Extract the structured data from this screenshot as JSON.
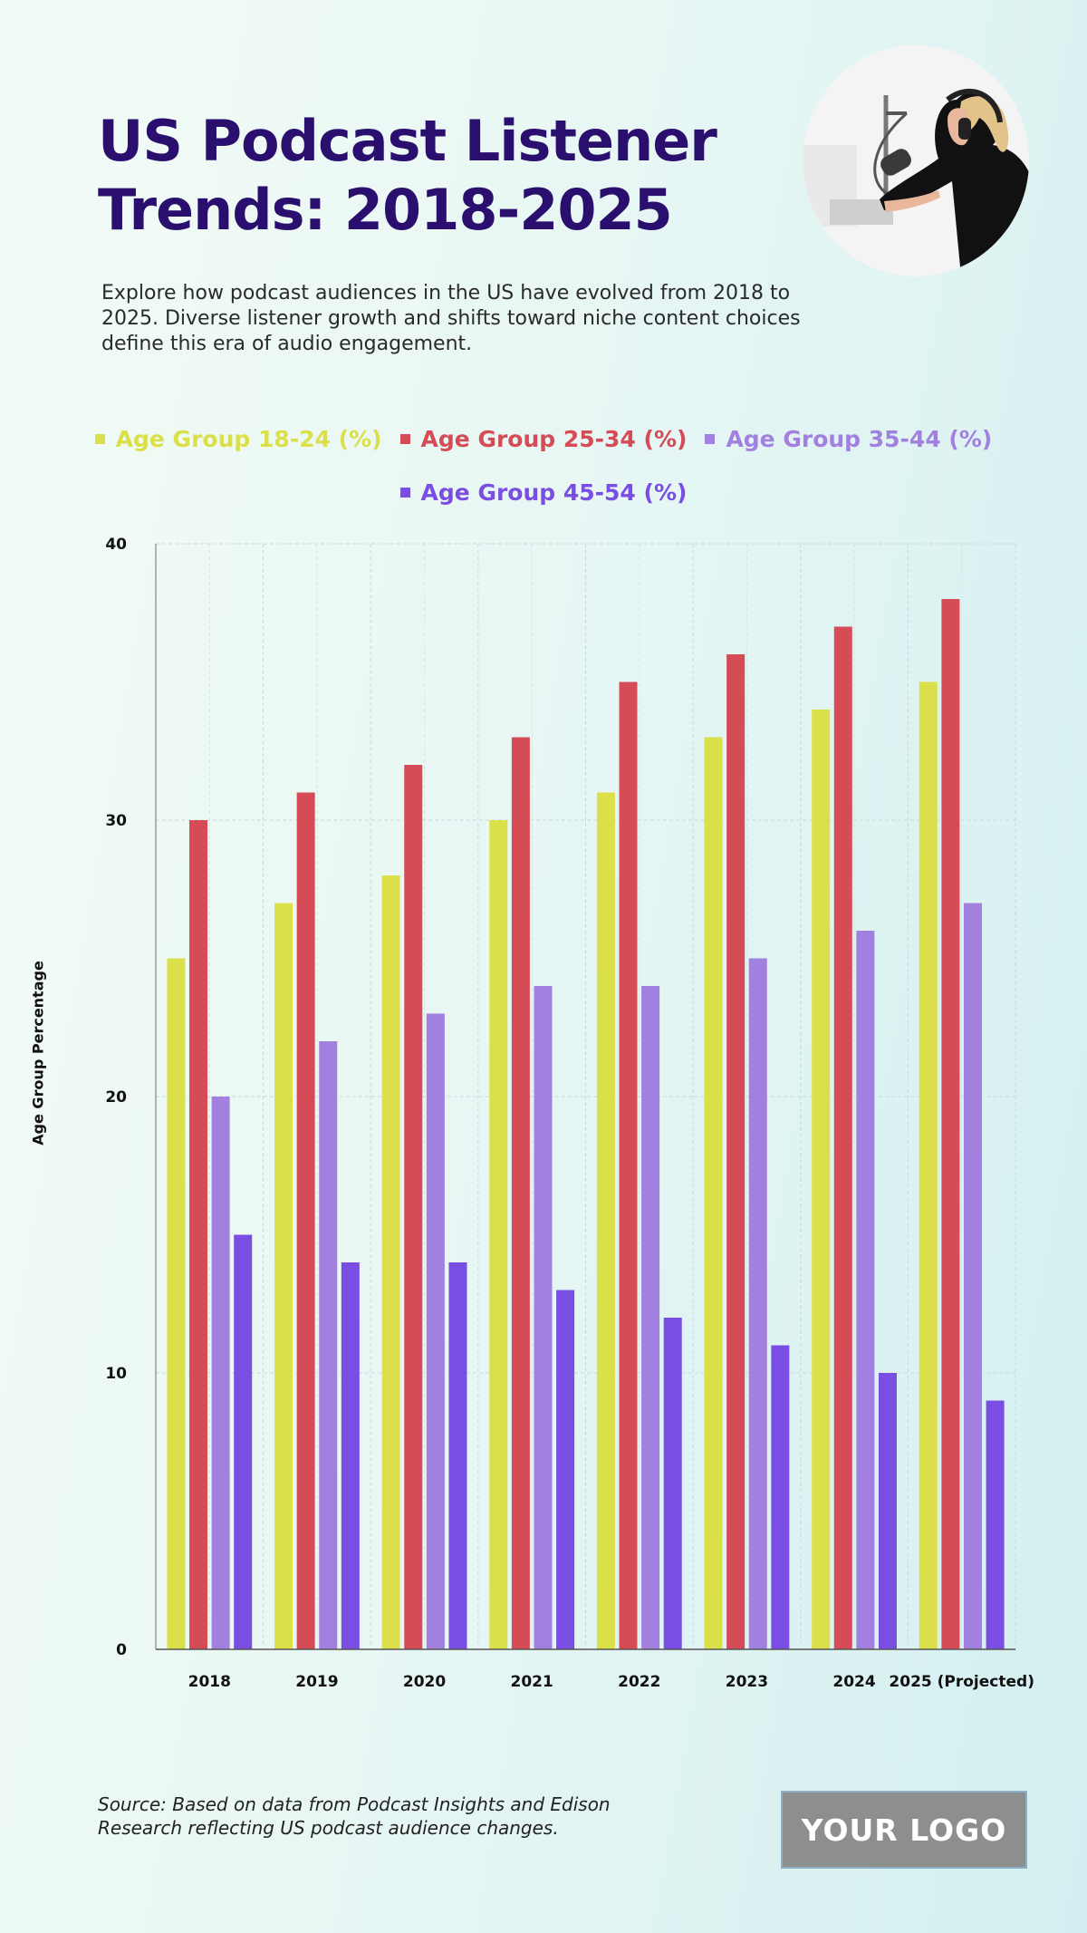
{
  "header": {
    "title": "US Podcast Listener Trends: 2018-2025",
    "subtitle": "Explore how podcast audiences in the US have evolved from 2018 to 2025. Diverse listener growth and shifts toward niche content choices define this era of audio engagement."
  },
  "footer": {
    "source": "Source: Based on data from Podcast Insights and Edison Research reflecting US podcast audience changes.",
    "logo_text": "YOUR LOGO"
  },
  "chart_data": {
    "type": "bar",
    "title": "",
    "xlabel": "",
    "ylabel": "Age Group Percentage",
    "ylim": [
      0,
      40
    ],
    "yticks": [
      0,
      10,
      20,
      30,
      40
    ],
    "grid": true,
    "legend_position": "top-center",
    "categories": [
      "2018",
      "2019",
      "2020",
      "2021",
      "2022",
      "2023",
      "2024",
      "2025 (Projected)"
    ],
    "series": [
      {
        "name": "Age Group 18-24 (%)",
        "color": "#dbe04a",
        "values": [
          25,
          27,
          28,
          30,
          31,
          33,
          34,
          35
        ]
      },
      {
        "name": "Age Group 25-34 (%)",
        "color": "#d54b56",
        "values": [
          30,
          31,
          32,
          33,
          35,
          36,
          37,
          38
        ]
      },
      {
        "name": "Age Group 35-44 (%)",
        "color": "#a180df",
        "values": [
          20,
          22,
          23,
          24,
          24,
          25,
          26,
          27
        ]
      },
      {
        "name": "Age Group 45-54 (%)",
        "color": "#7a4de3",
        "values": [
          15,
          14,
          14,
          13,
          12,
          11,
          10,
          9
        ]
      }
    ]
  }
}
